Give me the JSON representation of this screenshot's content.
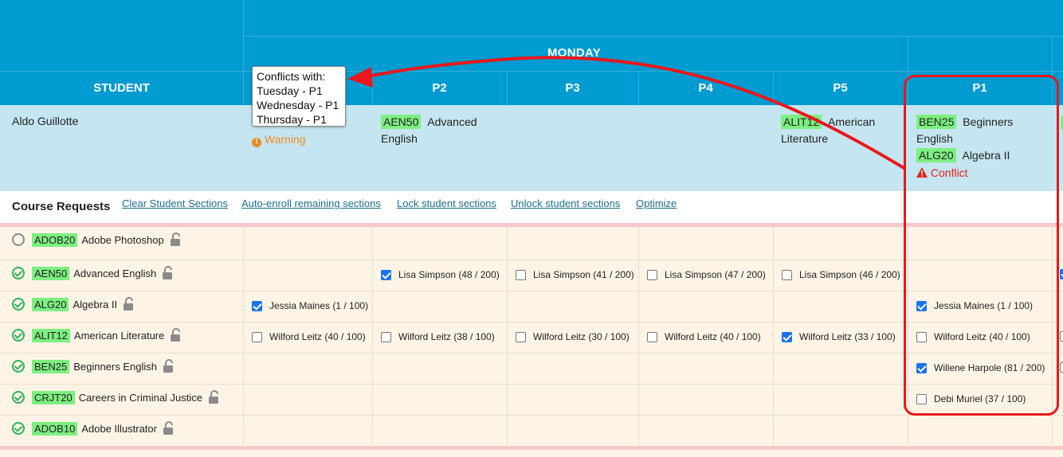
{
  "header": {
    "student_col": "STUDENT",
    "day": "MONDAY",
    "periods": [
      "P2",
      "P3",
      "P4",
      "P5",
      "P1"
    ]
  },
  "student": {
    "name": "Aldo Guillotte",
    "p2": {
      "code": "AEN50",
      "title": "Advanced English"
    },
    "p5": {
      "code": "ALIT12",
      "title": "American Literature"
    },
    "p1b": [
      {
        "code": "BEN25",
        "title": "Beginners English"
      },
      {
        "code": "ALG20",
        "title": "Algebra II"
      }
    ],
    "warning": "Warning",
    "conflict": "Conflict"
  },
  "tooltip": {
    "title": "Conflicts with:",
    "lines": [
      "Tuesday - P1",
      "Wednesday - P1",
      "Thursday - P1"
    ]
  },
  "course_requests": {
    "title": "Course Requests",
    "actions": [
      "Clear Student Sections",
      "Auto-enroll remaining sections",
      "Lock student sections",
      "Unlock student sections",
      "Optimize"
    ]
  },
  "requests": [
    {
      "code": "ADOB20",
      "name": "Adobe Photoshop",
      "status": "empty"
    },
    {
      "code": "AEN50",
      "name": "Advanced English",
      "status": "ok"
    },
    {
      "code": "ALG20",
      "name": "Algebra II",
      "status": "ok"
    },
    {
      "code": "ALIT12",
      "name": "American Literature",
      "status": "ok"
    },
    {
      "code": "BEN25",
      "name": "Beginners English",
      "status": "ok"
    },
    {
      "code": "CRJT20",
      "name": "Careers in Criminal Justice",
      "status": "ok"
    },
    {
      "code": "ADOB10",
      "name": "Adobe Illustrator",
      "status": "ok"
    }
  ],
  "sections": {
    "aen50": [
      {
        "col": "P2",
        "label": "Lisa Simpson (48 / 200)",
        "checked": true
      },
      {
        "col": "P3",
        "label": "Lisa Simpson (41 / 200)",
        "checked": false
      },
      {
        "col": "P4",
        "label": "Lisa Simpson (47 / 200)",
        "checked": false
      },
      {
        "col": "P5",
        "label": "Lisa Simpson (46 / 200)",
        "checked": false
      }
    ],
    "alg20": [
      {
        "col": "P1a",
        "label": "Jessia Maines (1 / 100)",
        "checked": true
      },
      {
        "col": "P1b",
        "label": "Jessia Maines (1 / 100)",
        "checked": true
      }
    ],
    "alit12": [
      {
        "col": "P1a",
        "label": "Wilford Leitz (40 / 100)",
        "checked": false
      },
      {
        "col": "P2",
        "label": "Wilford Leitz (38 / 100)",
        "checked": false
      },
      {
        "col": "P3",
        "label": "Wilford Leitz (30 / 100)",
        "checked": false
      },
      {
        "col": "P4",
        "label": "Wilford Leitz (40 / 100)",
        "checked": false
      },
      {
        "col": "P5",
        "label": "Wilford Leitz (33 / 100)",
        "checked": true
      },
      {
        "col": "P1b",
        "label": "Wilford Leitz (40 / 100)",
        "checked": false
      }
    ],
    "ben25": [
      {
        "col": "P1b",
        "label": "Willene Harpole (81 / 200)",
        "checked": true
      }
    ],
    "crjt20": [
      {
        "col": "P1b",
        "label": "Debi Muriel (37 / 100)",
        "checked": false
      }
    ]
  },
  "colors": {
    "header": "#009bd0",
    "student_row": "#c5e6f0",
    "grid": "#fdf4e6",
    "code_badge": "#7def81",
    "annotation": "#e8181d"
  }
}
